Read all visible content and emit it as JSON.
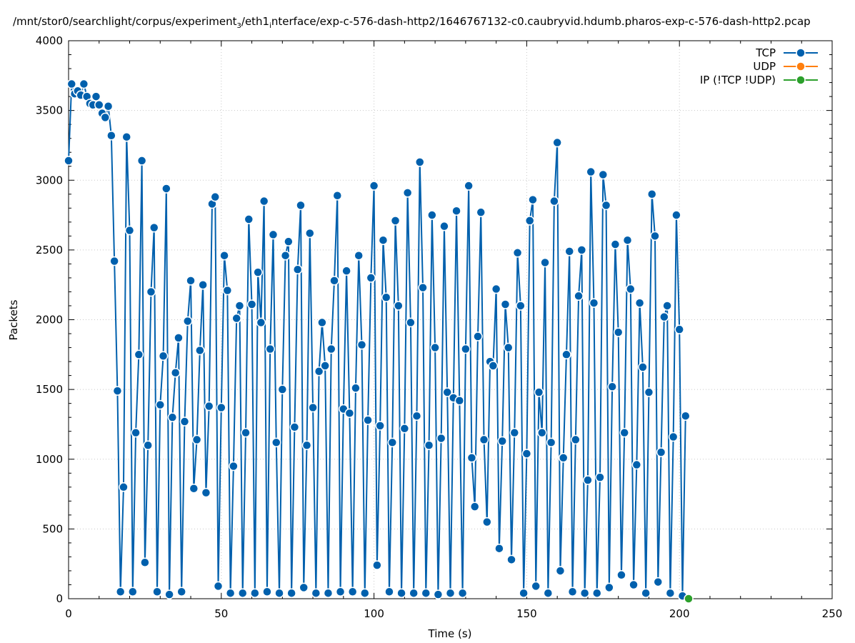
{
  "chart_data": {
    "type": "line",
    "title": "/mnt/stor0/searchlight/corpus/experiment",
    "title_sub1": "3",
    "title_mid": "/eth1",
    "title_sub2": "i",
    "title_rest": "nterface/exp-c-576-dash-http2/1646767132-c0.caubryvid.hdumb.pharos-exp-c-576-dash-http2.pcap",
    "xlabel": "Time (s)",
    "ylabel": "Packets",
    "xlim": [
      0,
      250
    ],
    "ylim": [
      0,
      4000
    ],
    "x_ticks": [
      "0",
      "50",
      "100",
      "150",
      "200",
      "250"
    ],
    "y_ticks": [
      "0",
      "500",
      "1000",
      "1500",
      "2000",
      "2500",
      "3000",
      "3500",
      "4000"
    ],
    "grid": true,
    "legend_position": "top-right",
    "colors": {
      "tcp": "#0060ad",
      "udp": "#ff7f0e",
      "ip": "#2ca02c"
    },
    "series": [
      {
        "name": "TCP",
        "x": [
          0,
          1,
          2,
          3,
          4,
          5,
          6,
          7,
          8,
          9,
          10,
          11,
          12,
          13,
          14,
          15,
          16,
          17,
          18,
          19,
          20,
          21,
          22,
          23,
          24,
          25,
          26,
          27,
          28,
          29,
          30,
          31,
          32,
          33,
          34,
          35,
          36,
          37,
          38,
          39,
          40,
          41,
          42,
          43,
          44,
          45,
          46,
          47,
          48,
          49,
          50,
          51,
          52,
          53,
          54,
          55,
          56,
          57,
          58,
          59,
          60,
          61,
          62,
          63,
          64,
          65,
          66,
          67,
          68,
          69,
          70,
          71,
          72,
          73,
          74,
          75,
          76,
          77,
          78,
          79,
          80,
          81,
          82,
          83,
          84,
          85,
          86,
          87,
          88,
          89,
          90,
          91,
          92,
          93,
          94,
          95,
          96,
          97,
          98,
          99,
          100,
          101,
          102,
          103,
          104,
          105,
          106,
          107,
          108,
          109,
          110,
          111,
          112,
          113,
          114,
          115,
          116,
          117,
          118,
          119,
          120,
          121,
          122,
          123,
          124,
          125,
          126,
          127,
          128,
          129,
          130,
          131,
          132,
          133,
          134,
          135,
          136,
          137,
          138,
          139,
          140,
          141,
          142,
          143,
          144,
          145,
          146,
          147,
          148,
          149,
          150,
          151,
          152,
          153,
          154,
          155,
          156,
          157,
          158,
          159,
          160,
          161,
          162,
          163,
          164,
          165,
          166,
          167,
          168,
          169,
          170,
          171,
          172,
          173,
          174,
          175,
          176,
          177,
          178,
          179,
          180,
          181,
          182,
          183,
          184,
          185,
          186,
          187,
          188,
          189,
          190,
          191,
          192,
          193,
          194,
          195,
          196,
          197,
          198,
          199,
          200,
          201,
          202,
          203
        ],
        "values": [
          3140,
          3690,
          3620,
          3640,
          3610,
          3690,
          3600,
          3550,
          3540,
          3600,
          3540,
          3480,
          3450,
          3530,
          3320,
          2420,
          1490,
          50,
          800,
          3310,
          2640,
          50,
          1190,
          1750,
          3140,
          260,
          1100,
          2200,
          2660,
          50,
          1390,
          1740,
          2940,
          30,
          1300,
          1620,
          1870,
          50,
          1270,
          1990,
          2280,
          790,
          1140,
          1780,
          2250,
          760,
          1380,
          2830,
          2880,
          90,
          1370,
          2460,
          2210,
          40,
          950,
          2010,
          2100,
          40,
          1190,
          2720,
          2110,
          40,
          2340,
          1980,
          2850,
          50,
          1790,
          2610,
          1120,
          40,
          1500,
          2460,
          2560,
          40,
          1230,
          2360,
          2820,
          80,
          1100,
          2620,
          1370,
          40,
          1630,
          1980,
          1670,
          40,
          1790,
          2280,
          2890,
          50,
          1360,
          2350,
          1330,
          50,
          1510,
          2460,
          1820,
          40,
          1280,
          2300,
          2960,
          240,
          1240,
          2570,
          2160,
          50,
          1120,
          2710,
          2100,
          40,
          1220,
          2910,
          1980,
          40,
          1310,
          3130,
          2230,
          40,
          1100,
          2750,
          1800,
          30,
          1150,
          2670,
          1480,
          40,
          1440,
          2780,
          1420,
          40,
          1790,
          2960,
          1010,
          660,
          1880,
          2770,
          1140,
          550,
          1700,
          1670,
          2220,
          360,
          1130,
          2110,
          1800,
          280,
          1190,
          2480,
          2100,
          40,
          1040,
          2710,
          2860,
          90,
          1480,
          1190,
          2410,
          40,
          1120,
          2850,
          3270,
          200,
          1010,
          1750,
          2490,
          50,
          1140,
          2170,
          2500,
          40,
          850,
          3060,
          2120,
          40,
          870,
          3040,
          2820,
          80,
          1520,
          2540,
          1910,
          170,
          1190,
          2570,
          2220,
          100,
          960,
          2120,
          1660,
          40,
          1480,
          2900,
          2600,
          120,
          1050,
          2020,
          2100,
          40,
          1160,
          2750,
          1930,
          20,
          1310,
          20
        ],
        "render_until_index": 202
      },
      {
        "name": "UDP",
        "x": [],
        "values": []
      },
      {
        "name": "IP (!TCP  !UDP)",
        "x": [
          203
        ],
        "values": [
          0
        ]
      }
    ]
  }
}
